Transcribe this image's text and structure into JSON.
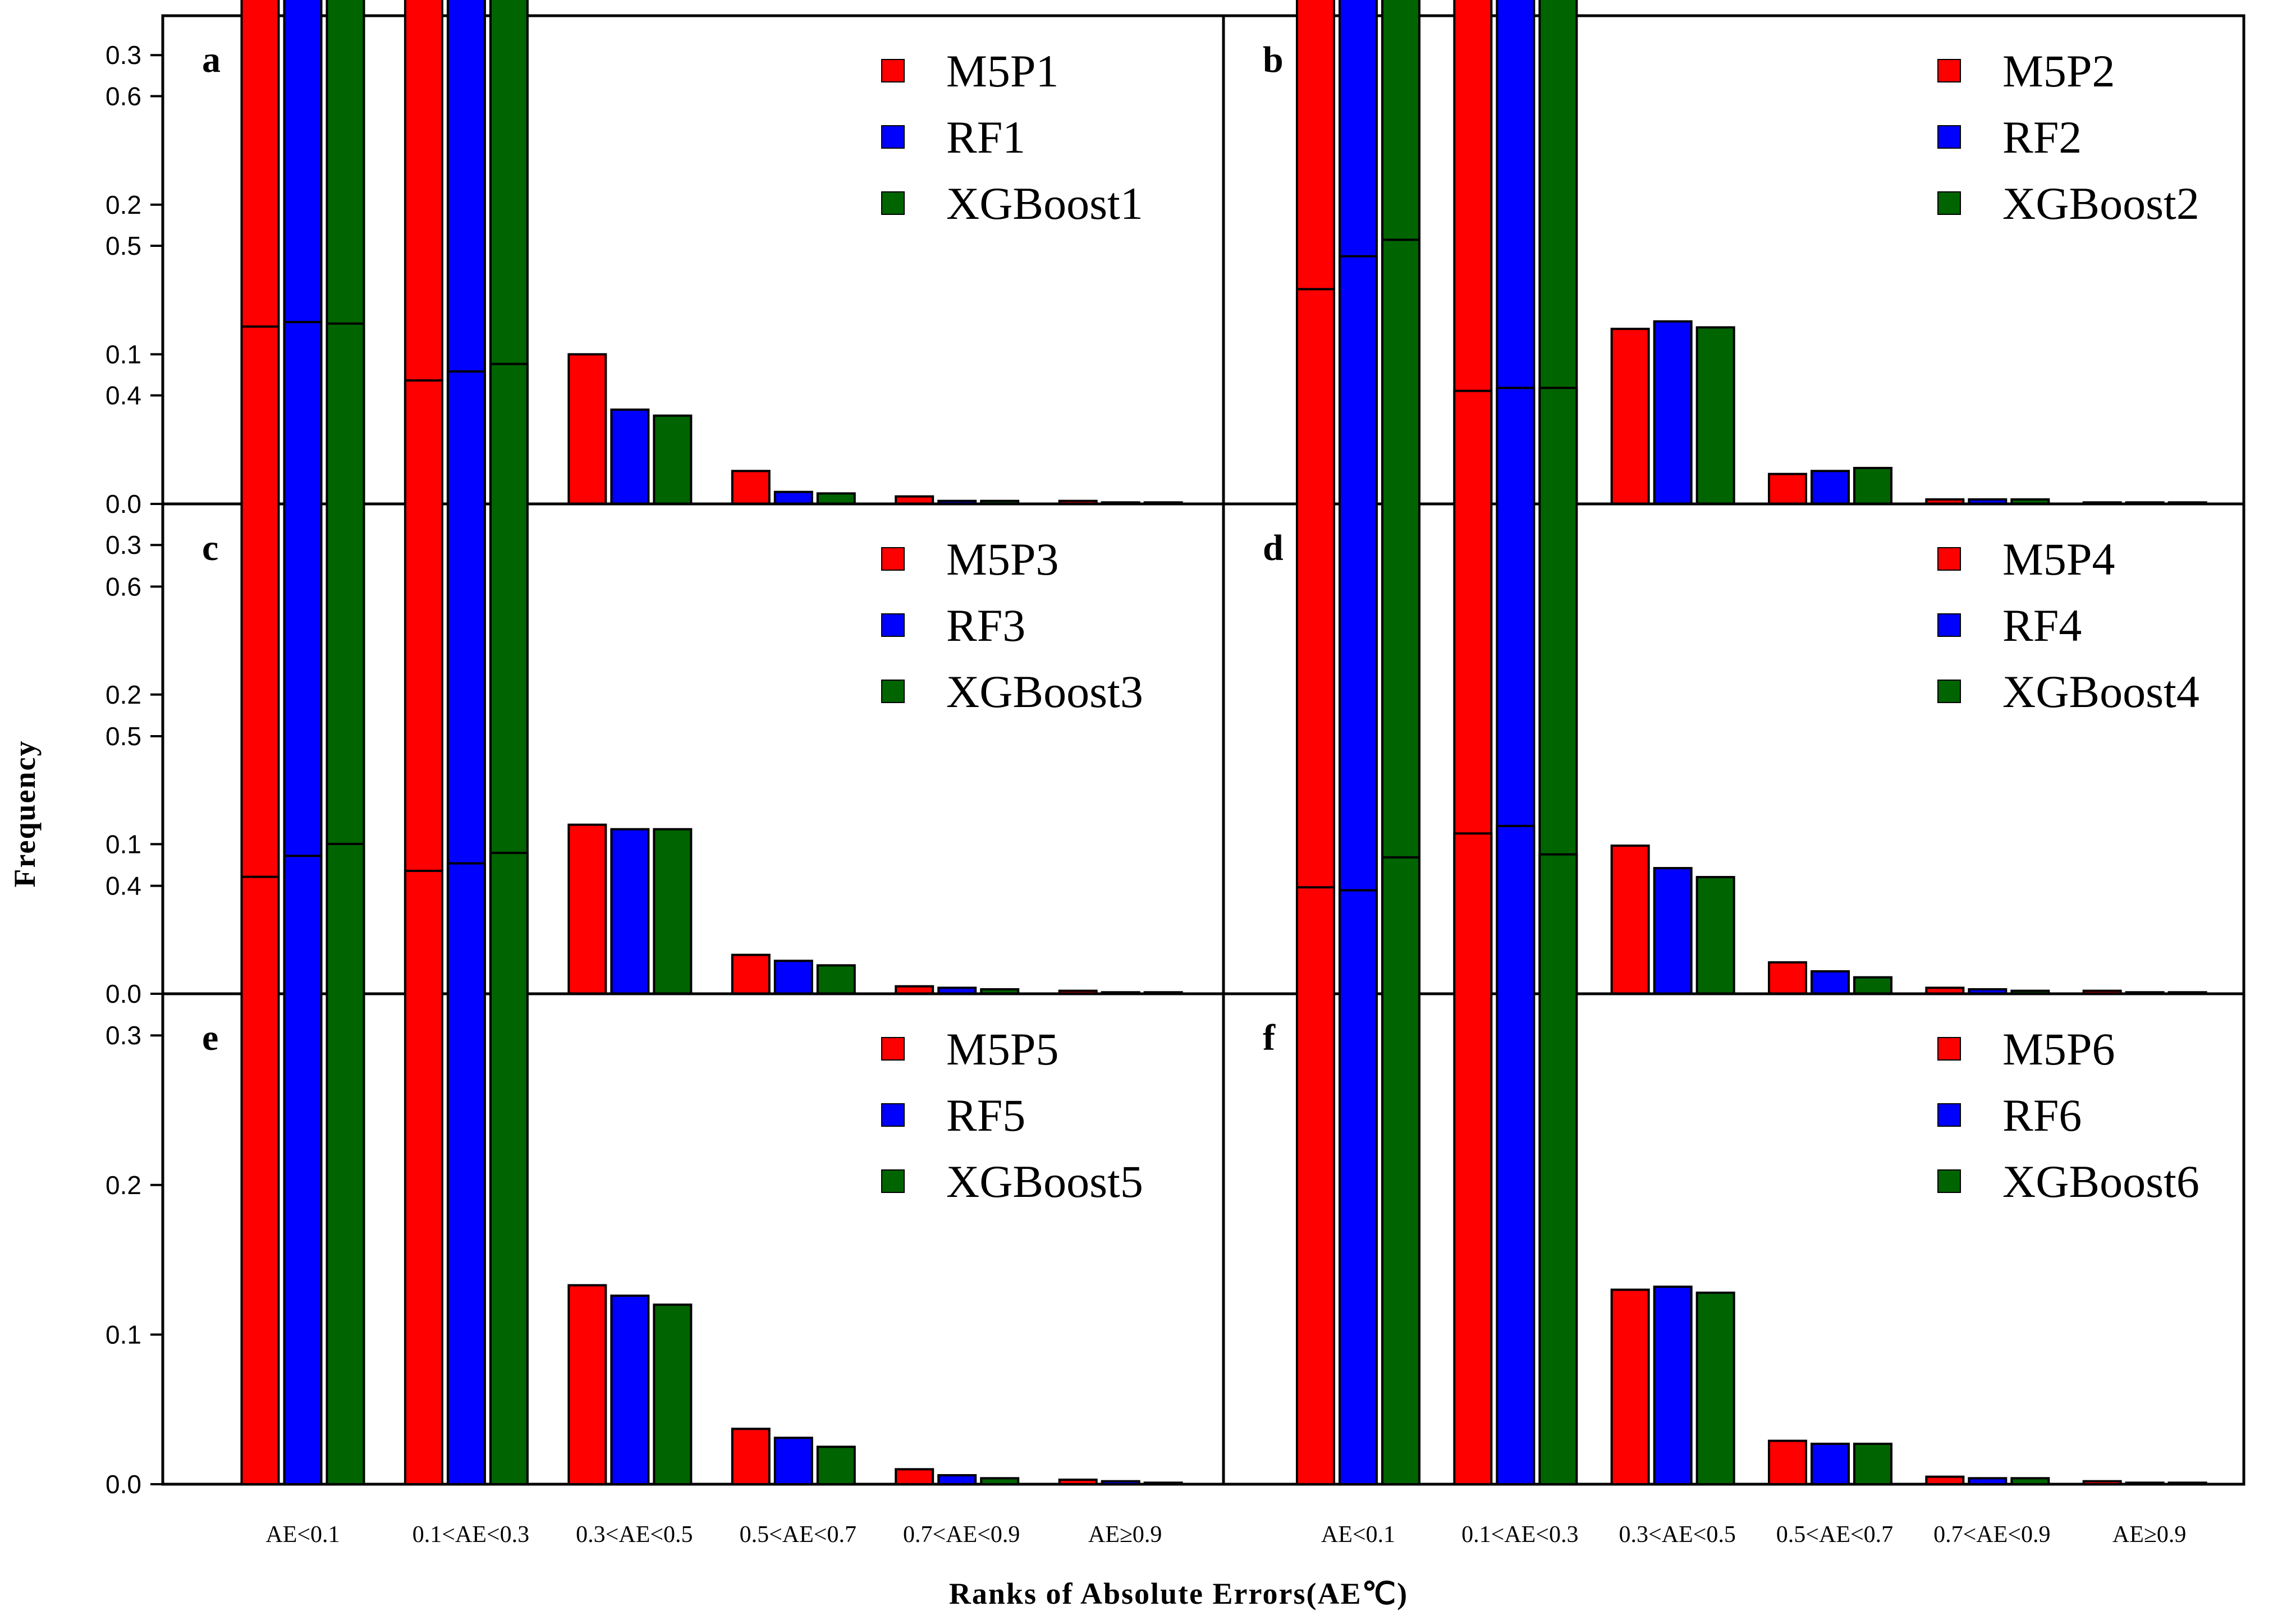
{
  "figure": {
    "ylabel": "Frequency",
    "xlabel": "Ranks of Absolute Errors(AE℃)"
  },
  "colors": {
    "M5P": "#ff0000",
    "RF": "#0000ff",
    "XGBoost": "#006400"
  },
  "chart_data": [
    {
      "type": "bar",
      "panel": "a",
      "categories": [
        "AE<0.1",
        "0.1<AE<0.3",
        "0.3<AE<0.5",
        "0.5<AE<0.7",
        "0.7<AE<0.9",
        "AE≥0.9"
      ],
      "yticks": [
        "0.0",
        "0.1",
        "0.2",
        "0.3",
        "0.4",
        "0.5",
        "0.6"
      ],
      "ylim": [
        0,
        0.65
      ],
      "series": [
        {
          "name": "M5P1",
          "values": [
            0.472,
            0.398,
            0.1,
            0.022,
            0.005,
            0.002
          ]
        },
        {
          "name": "RF1",
          "values": [
            0.529,
            0.396,
            0.063,
            0.008,
            0.002,
            0.001
          ]
        },
        {
          "name": "XGBoost1",
          "values": [
            0.551,
            0.379,
            0.059,
            0.007,
            0.002,
            0.001
          ]
        }
      ]
    },
    {
      "type": "bar",
      "panel": "b",
      "categories": [
        "AE<0.1",
        "0.1<AE<0.3",
        "0.3<AE<0.5",
        "0.5<AE<0.7",
        "0.7<AE<0.9",
        "AE≥0.9"
      ],
      "yticks": [],
      "ylim": [
        0,
        0.65
      ],
      "series": [
        {
          "name": "M5P2",
          "values": [
            0.409,
            0.451,
            0.117,
            0.02,
            0.003,
            0.001
          ]
        },
        {
          "name": "RF2",
          "values": [
            0.4,
            0.45,
            0.122,
            0.022,
            0.003,
            0.001
          ]
        },
        {
          "name": "XGBoost2",
          "values": [
            0.427,
            0.427,
            0.118,
            0.024,
            0.003,
            0.001
          ]
        }
      ]
    },
    {
      "type": "bar",
      "panel": "c",
      "categories": [
        "AE<0.1",
        "0.1<AE<0.3",
        "0.3<AE<0.5",
        "0.5<AE<0.7",
        "0.7<AE<0.9",
        "AE≥0.9"
      ],
      "yticks": [
        "0.0",
        "0.1",
        "0.2",
        "0.3",
        "0.4",
        "0.5",
        "0.6"
      ],
      "ylim": [
        0,
        0.65
      ],
      "series": [
        {
          "name": "M5P3",
          "values": [
            0.446,
            0.41,
            0.113,
            0.026,
            0.005,
            0.002
          ]
        },
        {
          "name": "RF3",
          "values": [
            0.449,
            0.416,
            0.11,
            0.022,
            0.004,
            0.001
          ]
        },
        {
          "name": "XGBoost3",
          "values": [
            0.448,
            0.421,
            0.11,
            0.019,
            0.003,
            0.001
          ]
        }
      ]
    },
    {
      "type": "bar",
      "panel": "d",
      "categories": [
        "AE<0.1",
        "0.1<AE<0.3",
        "0.3<AE<0.5",
        "0.5<AE<0.7",
        "0.7<AE<0.9",
        "AE≥0.9"
      ],
      "yticks": [],
      "ylim": [
        0,
        0.65
      ],
      "series": [
        {
          "name": "M5P4",
          "values": [
            0.471,
            0.403,
            0.099,
            0.021,
            0.004,
            0.002
          ]
        },
        {
          "name": "RF4",
          "values": [
            0.493,
            0.405,
            0.084,
            0.015,
            0.003,
            0.001
          ]
        },
        {
          "name": "XGBoost4",
          "values": [
            0.504,
            0.405,
            0.078,
            0.011,
            0.002,
            0.001
          ]
        }
      ]
    },
    {
      "type": "bar",
      "panel": "e",
      "categories": [
        "AE<0.1",
        "0.1<AE<0.3",
        "0.3<AE<0.5",
        "0.5<AE<0.7",
        "0.7<AE<0.9",
        "AE≥0.9"
      ],
      "yticks": [
        "0.0",
        "0.1",
        "0.2",
        "0.3",
        "0.4",
        "0.5",
        "0.6"
      ],
      "ylim": [
        0,
        0.65
      ],
      "series": [
        {
          "name": "M5P5",
          "values": [
            0.406,
            0.41,
            0.133,
            0.037,
            0.01,
            0.003
          ]
        },
        {
          "name": "RF5",
          "values": [
            0.42,
            0.415,
            0.126,
            0.031,
            0.006,
            0.002
          ]
        },
        {
          "name": "XGBoost5",
          "values": [
            0.428,
            0.422,
            0.12,
            0.025,
            0.004,
            0.001
          ]
        }
      ]
    },
    {
      "type": "bar",
      "panel": "f",
      "categories": [
        "AE<0.1",
        "0.1<AE<0.3",
        "0.3<AE<0.5",
        "0.5<AE<0.7",
        "0.7<AE<0.9",
        "AE≥0.9"
      ],
      "yticks": [],
      "ylim": [
        0,
        0.65
      ],
      "series": [
        {
          "name": "M5P6",
          "values": [
            0.399,
            0.435,
            0.13,
            0.029,
            0.005,
            0.002
          ]
        },
        {
          "name": "RF6",
          "values": [
            0.397,
            0.44,
            0.132,
            0.027,
            0.004,
            0.001
          ]
        },
        {
          "name": "XGBoost6",
          "values": [
            0.419,
            0.421,
            0.128,
            0.027,
            0.004,
            0.001
          ]
        }
      ]
    }
  ]
}
